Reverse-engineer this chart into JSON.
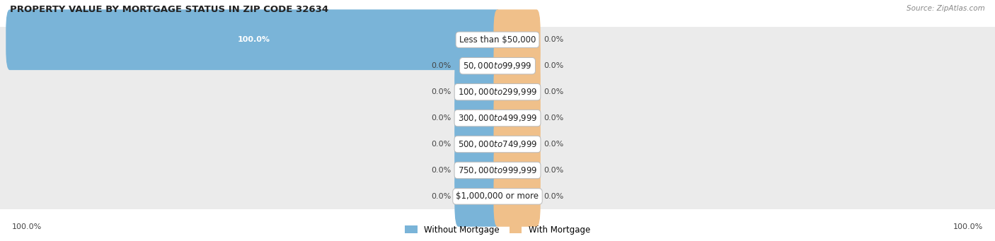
{
  "title": "PROPERTY VALUE BY MORTGAGE STATUS IN ZIP CODE 32634",
  "source": "Source: ZipAtlas.com",
  "categories": [
    "Less than $50,000",
    "$50,000 to $99,999",
    "$100,000 to $299,999",
    "$300,000 to $499,999",
    "$500,000 to $749,999",
    "$750,000 to $999,999",
    "$1,000,000 or more"
  ],
  "without_mortgage": [
    100.0,
    0.0,
    0.0,
    0.0,
    0.0,
    0.0,
    0.0
  ],
  "with_mortgage": [
    0.0,
    0.0,
    0.0,
    0.0,
    0.0,
    0.0,
    0.0
  ],
  "color_without": "#7ab4d8",
  "color_with": "#f0c08a",
  "row_bg_even": "#ececec",
  "row_bg_odd": "#e2e2e2",
  "label_left_100": "100.0%",
  "label_right_100": "100.0%",
  "legend_without": "Without Mortgage",
  "legend_with": "With Mortgage",
  "stub_size": 8.0,
  "figsize": [
    14.06,
    3.41
  ],
  "dpi": 100
}
